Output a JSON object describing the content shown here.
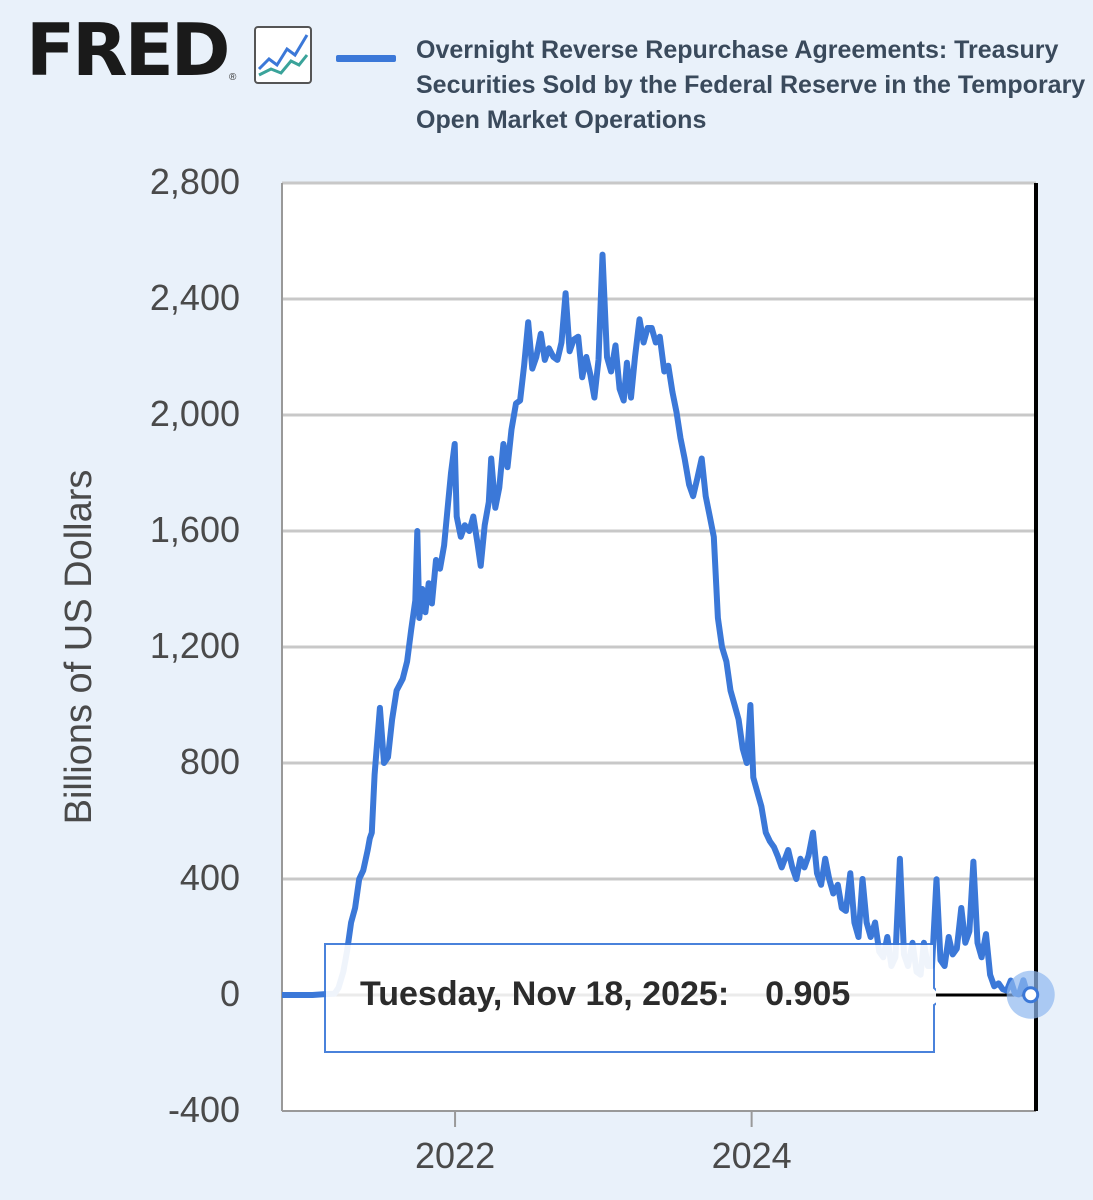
{
  "logo": {
    "text": "FRED",
    "reg": "®"
  },
  "legend": {
    "label": "Overnight Reverse Repurchase Agreements: Treasury Securities Sold by the Federal Reserve in the Temporary Open Market Operations"
  },
  "tooltip": {
    "date": "Tuesday, Nov 18, 2025:",
    "value": "0.905"
  },
  "colors": {
    "series": "#3b78d8",
    "background": "#e9f1fa",
    "plot_bg": "#ffffff",
    "grid": "#c8c8c8"
  },
  "chart_data": {
    "type": "line",
    "ylabel": "Billions of US Dollars",
    "xlabel": "",
    "ylim": [
      -400,
      2800
    ],
    "yticks": [
      -400,
      0,
      400,
      800,
      1200,
      1600,
      2000,
      2400,
      2800
    ],
    "ytick_labels": [
      "-400",
      "0",
      "400",
      "800",
      "1,200",
      "1,600",
      "2,000",
      "2,400",
      "2,800"
    ],
    "xlim": [
      "2020-11-01",
      "2025-12-01"
    ],
    "xticks": [
      "2022-01-01",
      "2024-01-01"
    ],
    "xtick_labels": [
      "2022",
      "2024"
    ],
    "grid": true,
    "series": [
      {
        "values": [
          [
            "2020-11-01",
            0
          ],
          [
            "2020-12-15",
            0
          ],
          [
            "2021-01-15",
            0
          ],
          [
            "2021-02-15",
            3
          ],
          [
            "2021-03-10",
            4
          ],
          [
            "2021-03-20",
            25
          ],
          [
            "2021-04-01",
            80
          ],
          [
            "2021-04-10",
            150
          ],
          [
            "2021-04-20",
            250
          ],
          [
            "2021-04-30",
            300
          ],
          [
            "2021-05-10",
            400
          ],
          [
            "2021-05-20",
            430
          ],
          [
            "2021-05-31",
            500
          ],
          [
            "2021-06-05",
            540
          ],
          [
            "2021-06-10",
            560
          ],
          [
            "2021-06-17",
            760
          ],
          [
            "2021-06-30",
            990
          ],
          [
            "2021-07-10",
            800
          ],
          [
            "2021-07-20",
            820
          ],
          [
            "2021-07-30",
            950
          ],
          [
            "2021-08-10",
            1050
          ],
          [
            "2021-08-25",
            1090
          ],
          [
            "2021-09-05",
            1150
          ],
          [
            "2021-09-15",
            1260
          ],
          [
            "2021-09-25",
            1360
          ],
          [
            "2021-09-30",
            1600
          ],
          [
            "2021-10-05",
            1300
          ],
          [
            "2021-10-12",
            1400
          ],
          [
            "2021-10-20",
            1320
          ],
          [
            "2021-10-28",
            1420
          ],
          [
            "2021-11-05",
            1350
          ],
          [
            "2021-11-15",
            1500
          ],
          [
            "2021-11-25",
            1470
          ],
          [
            "2021-12-05",
            1550
          ],
          [
            "2021-12-15",
            1700
          ],
          [
            "2021-12-22",
            1800
          ],
          [
            "2021-12-31",
            1900
          ],
          [
            "2022-01-05",
            1650
          ],
          [
            "2022-01-15",
            1580
          ],
          [
            "2022-01-25",
            1620
          ],
          [
            "2022-02-05",
            1600
          ],
          [
            "2022-02-15",
            1650
          ],
          [
            "2022-02-25",
            1560
          ],
          [
            "2022-03-05",
            1480
          ],
          [
            "2022-03-15",
            1620
          ],
          [
            "2022-03-25",
            1700
          ],
          [
            "2022-03-31",
            1850
          ],
          [
            "2022-04-10",
            1680
          ],
          [
            "2022-04-20",
            1750
          ],
          [
            "2022-04-30",
            1900
          ],
          [
            "2022-05-10",
            1820
          ],
          [
            "2022-05-20",
            1950
          ],
          [
            "2022-05-31",
            2040
          ],
          [
            "2022-06-10",
            2050
          ],
          [
            "2022-06-20",
            2170
          ],
          [
            "2022-06-30",
            2320
          ],
          [
            "2022-07-10",
            2160
          ],
          [
            "2022-07-20",
            2200
          ],
          [
            "2022-07-31",
            2280
          ],
          [
            "2022-08-10",
            2190
          ],
          [
            "2022-08-20",
            2230
          ],
          [
            "2022-08-31",
            2200
          ],
          [
            "2022-09-10",
            2190
          ],
          [
            "2022-09-20",
            2250
          ],
          [
            "2022-09-30",
            2420
          ],
          [
            "2022-10-10",
            2220
          ],
          [
            "2022-10-20",
            2260
          ],
          [
            "2022-10-31",
            2270
          ],
          [
            "2022-11-10",
            2130
          ],
          [
            "2022-11-20",
            2200
          ],
          [
            "2022-11-30",
            2140
          ],
          [
            "2022-12-10",
            2060
          ],
          [
            "2022-12-20",
            2190
          ],
          [
            "2022-12-30",
            2553
          ],
          [
            "2023-01-10",
            2200
          ],
          [
            "2023-01-20",
            2150
          ],
          [
            "2023-01-31",
            2240
          ],
          [
            "2023-02-10",
            2090
          ],
          [
            "2023-02-20",
            2050
          ],
          [
            "2023-02-28",
            2180
          ],
          [
            "2023-03-10",
            2060
          ],
          [
            "2023-03-20",
            2200
          ],
          [
            "2023-03-31",
            2330
          ],
          [
            "2023-04-10",
            2250
          ],
          [
            "2023-04-20",
            2300
          ],
          [
            "2023-04-30",
            2300
          ],
          [
            "2023-05-10",
            2250
          ],
          [
            "2023-05-20",
            2270
          ],
          [
            "2023-05-31",
            2150
          ],
          [
            "2023-06-10",
            2170
          ],
          [
            "2023-06-20",
            2080
          ],
          [
            "2023-06-30",
            2010
          ],
          [
            "2023-07-10",
            1920
          ],
          [
            "2023-07-20",
            1850
          ],
          [
            "2023-07-31",
            1760
          ],
          [
            "2023-08-10",
            1720
          ],
          [
            "2023-08-20",
            1780
          ],
          [
            "2023-08-31",
            1850
          ],
          [
            "2023-09-10",
            1720
          ],
          [
            "2023-09-20",
            1650
          ],
          [
            "2023-09-30",
            1580
          ],
          [
            "2023-10-10",
            1300
          ],
          [
            "2023-10-20",
            1200
          ],
          [
            "2023-10-31",
            1150
          ],
          [
            "2023-11-10",
            1050
          ],
          [
            "2023-11-20",
            1000
          ],
          [
            "2023-11-30",
            950
          ],
          [
            "2023-12-10",
            850
          ],
          [
            "2023-12-20",
            800
          ],
          [
            "2023-12-29",
            1000
          ],
          [
            "2024-01-05",
            750
          ],
          [
            "2024-01-15",
            700
          ],
          [
            "2024-01-25",
            650
          ],
          [
            "2024-02-05",
            560
          ],
          [
            "2024-02-15",
            530
          ],
          [
            "2024-02-25",
            510
          ],
          [
            "2024-03-05",
            480
          ],
          [
            "2024-03-15",
            440
          ],
          [
            "2024-03-31",
            500
          ],
          [
            "2024-04-10",
            440
          ],
          [
            "2024-04-20",
            400
          ],
          [
            "2024-04-30",
            470
          ],
          [
            "2024-05-10",
            440
          ],
          [
            "2024-05-20",
            480
          ],
          [
            "2024-05-31",
            560
          ],
          [
            "2024-06-10",
            420
          ],
          [
            "2024-06-20",
            380
          ],
          [
            "2024-06-30",
            470
          ],
          [
            "2024-07-10",
            400
          ],
          [
            "2024-07-20",
            350
          ],
          [
            "2024-07-31",
            380
          ],
          [
            "2024-08-10",
            300
          ],
          [
            "2024-08-20",
            290
          ],
          [
            "2024-08-31",
            420
          ],
          [
            "2024-09-10",
            250
          ],
          [
            "2024-09-20",
            200
          ],
          [
            "2024-09-30",
            400
          ],
          [
            "2024-10-10",
            250
          ],
          [
            "2024-10-20",
            200
          ],
          [
            "2024-10-31",
            250
          ],
          [
            "2024-11-10",
            150
          ],
          [
            "2024-11-20",
            130
          ],
          [
            "2024-11-30",
            200
          ],
          [
            "2024-12-10",
            100
          ],
          [
            "2024-12-20",
            130
          ],
          [
            "2024-12-31",
            470
          ],
          [
            "2025-01-10",
            140
          ],
          [
            "2025-01-20",
            100
          ],
          [
            "2025-01-31",
            180
          ],
          [
            "2025-02-10",
            80
          ],
          [
            "2025-02-20",
            70
          ],
          [
            "2025-02-28",
            180
          ],
          [
            "2025-03-10",
            100
          ],
          [
            "2025-03-20",
            100
          ],
          [
            "2025-03-31",
            399
          ],
          [
            "2025-04-10",
            120
          ],
          [
            "2025-04-20",
            100
          ],
          [
            "2025-04-30",
            200
          ],
          [
            "2025-05-10",
            140
          ],
          [
            "2025-05-20",
            160
          ],
          [
            "2025-05-31",
            300
          ],
          [
            "2025-06-10",
            180
          ],
          [
            "2025-06-20",
            220
          ],
          [
            "2025-06-30",
            460
          ],
          [
            "2025-07-10",
            180
          ],
          [
            "2025-07-20",
            130
          ],
          [
            "2025-07-31",
            210
          ],
          [
            "2025-08-10",
            70
          ],
          [
            "2025-08-20",
            30
          ],
          [
            "2025-08-31",
            40
          ],
          [
            "2025-09-10",
            20
          ],
          [
            "2025-09-20",
            15
          ],
          [
            "2025-09-30",
            50
          ],
          [
            "2025-10-10",
            5
          ],
          [
            "2025-10-20",
            2
          ],
          [
            "2025-10-31",
            51
          ],
          [
            "2025-11-10",
            3
          ],
          [
            "2025-11-18",
            0.905
          ]
        ]
      }
    ]
  }
}
